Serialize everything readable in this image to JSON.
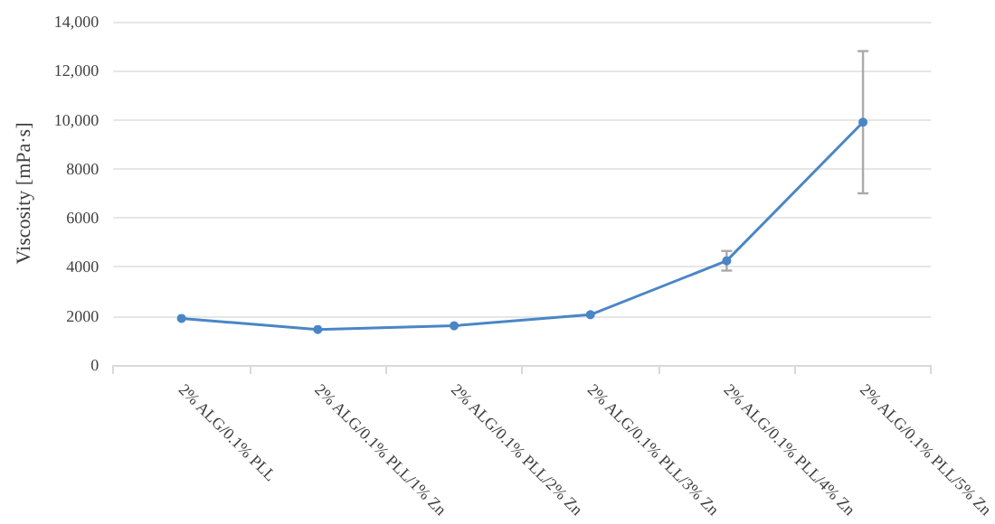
{
  "chart_data": {
    "type": "line",
    "ylabel": "Viscosity [mPa·s]",
    "categories": [
      "2% ALG/0.1% PLL",
      "2% ALG/0.1% PLL/1% Zn",
      "2% ALG/0.1% PLL/2% Zn",
      "2% ALG/0.1% PLL/3% Zn",
      "2% ALG/0.1% PLL/4% Zn",
      "2% ALG/0.1% PLL/5% Zn"
    ],
    "series": [
      {
        "color": "#4a86c6",
        "values": [
          1900,
          1450,
          1600,
          2050,
          4250,
          9900
        ],
        "errors": [
          null,
          null,
          null,
          null,
          400,
          2900
        ]
      }
    ],
    "ylim": [
      0,
      14000
    ],
    "yticks": [
      0,
      2000,
      4000,
      6000,
      8000,
      {
        "value": 10000,
        "label": "10,000"
      },
      {
        "value": 12000,
        "label": "12,000"
      },
      {
        "value": 14000,
        "label": "14,000"
      }
    ],
    "grid": "y",
    "marker": "circle",
    "line_style": "solid"
  }
}
